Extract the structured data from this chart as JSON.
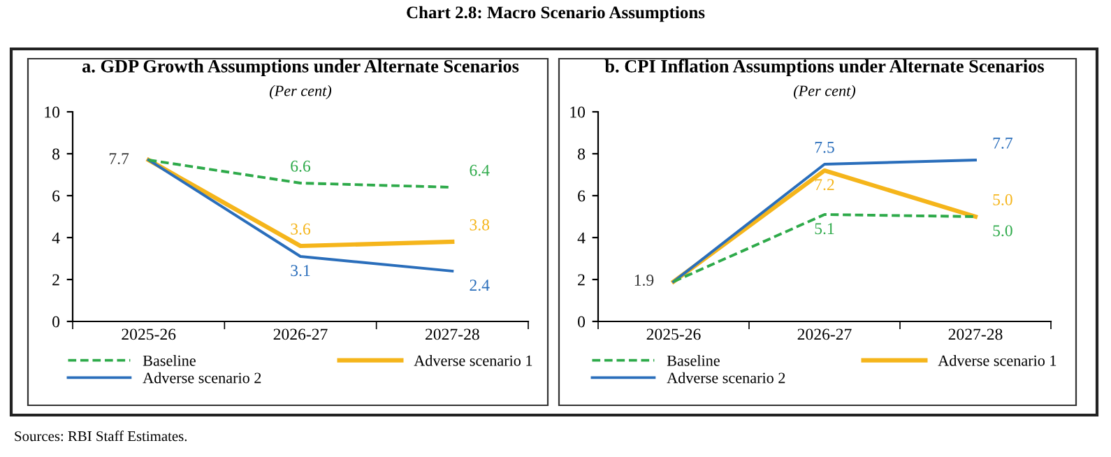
{
  "chart_data": [
    {
      "type": "line",
      "title": "a. GDP Growth Assumptions under Alternate Scenarios",
      "subtitle": "(Per cent)",
      "categories": [
        "2025-26",
        "2026-27",
        "2027-28"
      ],
      "ylim": [
        0,
        10
      ],
      "yticks": [
        0,
        2,
        4,
        6,
        8,
        10
      ],
      "grid": false,
      "legend": "bottom",
      "annotations": [
        "Chart 2.8: Macro Scenario Assumptions",
        "Sources: RBI Staff Estimates."
      ],
      "series": [
        {
          "name": "Baseline",
          "color": "#2eaa4a",
          "line_style": "dashed",
          "values": [
            7.7,
            6.6,
            6.4
          ],
          "value_labels": [
            null,
            "6.6",
            "6.4"
          ]
        },
        {
          "name": "Adverse scenario 1",
          "color": "#f5b51b",
          "values": [
            7.7,
            3.6,
            3.8
          ],
          "value_labels": [
            null,
            "3.6",
            "3.8"
          ]
        },
        {
          "name": "Adverse scenario 2",
          "color": "#2a6ebb",
          "values": [
            7.7,
            3.1,
            2.4
          ],
          "value_labels": [
            "7.7",
            "3.1",
            "2.4"
          ]
        }
      ]
    },
    {
      "type": "line",
      "title": "b. CPI Inflation Assumptions under Alternate Scenarios",
      "subtitle": "(Per cent)",
      "categories": [
        "2025-26",
        "2026-27",
        "2027-28"
      ],
      "ylim": [
        0,
        10
      ],
      "yticks": [
        0,
        2,
        4,
        6,
        8,
        10
      ],
      "grid": false,
      "legend": "bottom",
      "series": [
        {
          "name": "Baseline",
          "color": "#2eaa4a",
          "line_style": "dashed",
          "values": [
            1.9,
            5.1,
            5.0
          ],
          "value_labels": [
            null,
            "5.1",
            "5.0"
          ]
        },
        {
          "name": "Adverse scenario 1",
          "color": "#f5b51b",
          "values": [
            1.9,
            7.2,
            5.0
          ],
          "value_labels": [
            null,
            "7.2",
            "5.0"
          ]
        },
        {
          "name": "Adverse scenario 2",
          "color": "#2a6ebb",
          "values": [
            1.9,
            7.5,
            7.7
          ],
          "value_labels": [
            "1.9",
            "7.5",
            "7.7"
          ]
        }
      ]
    }
  ]
}
